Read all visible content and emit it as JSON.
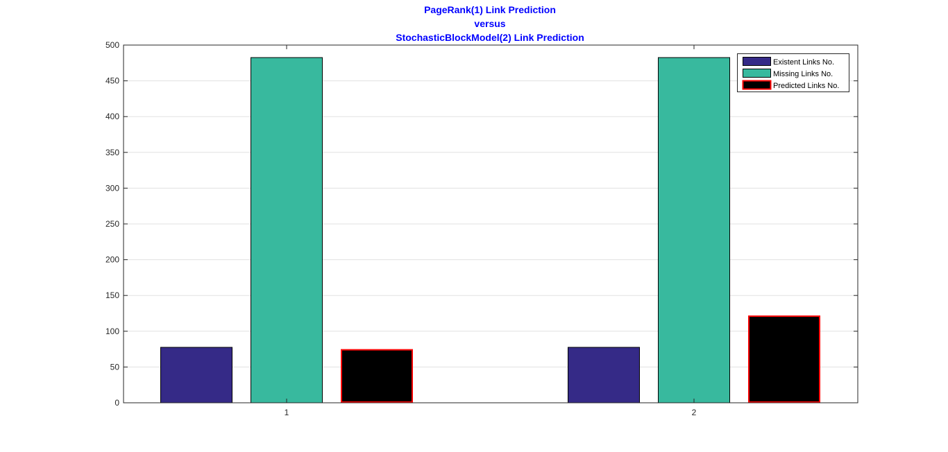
{
  "chart_data": {
    "type": "bar",
    "title_lines": [
      "PageRank(1) Link Prediction",
      "versus",
      "StochasticBlockModel(2) Link Prediction"
    ],
    "categories": [
      "1",
      "2"
    ],
    "series": [
      {
        "name": "Existent Links No.",
        "values": [
          78,
          78
        ],
        "color": "#352a87",
        "edge": "#000000"
      },
      {
        "name": "Missing Links No.",
        "values": [
          483,
          483
        ],
        "color": "#38b99e",
        "edge": "#000000"
      },
      {
        "name": "Predicted Links No.",
        "values": [
          75,
          122
        ],
        "color": "#000000",
        "edge": "#ff0000"
      }
    ],
    "xlabel": "",
    "ylabel": "",
    "ylim": [
      0,
      500
    ],
    "yticks": [
      0,
      50,
      100,
      150,
      200,
      250,
      300,
      350,
      400,
      450,
      500
    ],
    "grid": true,
    "legend_position": "top-right",
    "title_color": "#0000ff"
  }
}
